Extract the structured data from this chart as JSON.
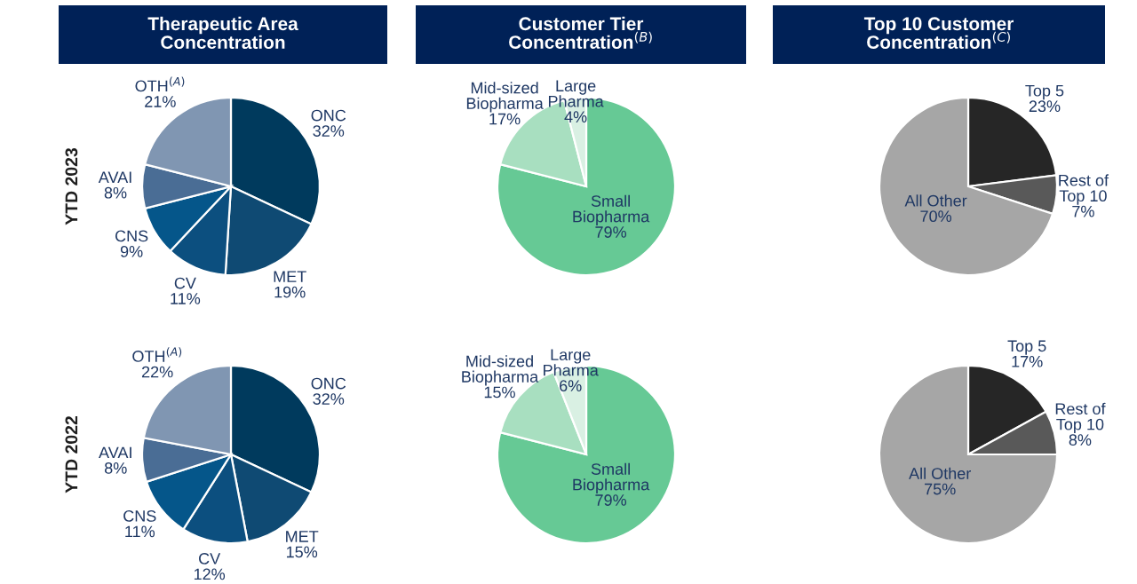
{
  "chart_data": [
    {
      "type": "pie",
      "title": "Therapeutic Area\nConcentration",
      "ylabel": "YTD 2023",
      "categories": [
        "ONC",
        "MET",
        "CV",
        "CNS",
        "AVAI",
        "OTH$^{(A)}$"
      ],
      "values": [
        32,
        19,
        11,
        9,
        8,
        21
      ],
      "value_labels": [
        "32%",
        "19%",
        "11%",
        "9%",
        "8%",
        "21%"
      ],
      "colors": [
        "#003a5d",
        "#0f4a73",
        "#0c4f7f",
        "#05568a",
        "#4a6d95",
        "#8096b2"
      ]
    },
    {
      "type": "pie",
      "title": "Customer Tier\nConcentration$^{(B)}$",
      "categories": [
        "Small\nBiopharma",
        "Mid-sized\nBiopharma",
        "Large\nPharma"
      ],
      "values": [
        79,
        17,
        4
      ],
      "value_labels": [
        "79%",
        "17%",
        "4%"
      ],
      "colors": [
        "#66c995",
        "#a8dfc0",
        "#d9f0e3"
      ]
    },
    {
      "type": "pie",
      "title": "Top 10 Customer\nConcentration$^{(C)}$",
      "categories": [
        "Top 5",
        "Rest of\nTop 10",
        "All Other"
      ],
      "values": [
        23,
        7,
        70
      ],
      "value_labels": [
        "23%",
        "7%",
        "70%"
      ],
      "colors": [
        "#262626",
        "#595959",
        "#a6a6a6"
      ]
    },
    {
      "type": "pie",
      "ylabel": "YTD 2022",
      "categories": [
        "ONC",
        "MET",
        "CV",
        "CNS",
        "AVAI",
        "OTH$^{(A)}$"
      ],
      "values": [
        32,
        15,
        12,
        11,
        8,
        22
      ],
      "value_labels": [
        "32%",
        "15%",
        "12%",
        "11%",
        "8%",
        "22%"
      ],
      "colors": [
        "#003a5d",
        "#0f4a73",
        "#0c4f7f",
        "#05568a",
        "#4a6d95",
        "#8096b2"
      ]
    },
    {
      "type": "pie",
      "categories": [
        "Small\nBiopharma",
        "Mid-sized\nBiopharma",
        "Large\nPharma"
      ],
      "values": [
        79,
        15,
        6
      ],
      "value_labels": [
        "79%",
        "15%",
        "6%"
      ],
      "colors": [
        "#66c995",
        "#a8dfc0",
        "#d9f0e3"
      ]
    },
    {
      "type": "pie",
      "categories": [
        "Top 5",
        "Rest of\nTop 10",
        "All Other"
      ],
      "values": [
        17,
        8,
        75
      ],
      "value_labels": [
        "17%",
        "8%",
        "75%"
      ],
      "colors": [
        "#262626",
        "#595959",
        "#a6a6a6"
      ]
    }
  ]
}
